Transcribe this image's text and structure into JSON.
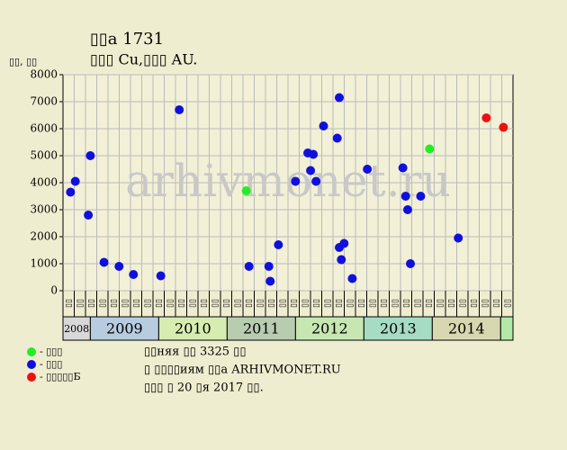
{
  "chart_data": {
    "type": "scatter",
    "title": "▯▯а 1731",
    "subtitle": "▯▯▯ Cu,▯▯▯ AU.",
    "y_label": "▯▯, ▯▯",
    "watermark": "arhivmonet.ru",
    "xlim": [
      2008.6,
      2015.18
    ],
    "ylim": [
      0,
      8000
    ],
    "yticks": [
      0,
      1000,
      2000,
      3000,
      4000,
      5000,
      6000,
      7000,
      8000
    ],
    "grid": true,
    "columns": [
      "▯▯",
      "▯▯",
      "▯▯",
      "▯▯",
      "▯▯",
      "▯▯",
      "▯▯",
      "▯▯",
      "▯▯",
      "▯▯",
      "▯▯",
      "▯▯",
      "▯▯",
      "▯▯",
      "▯▯",
      "▯▯",
      "▯▯",
      "▯▯",
      "▯▯",
      "▯▯",
      "▯▯",
      "▯▯",
      "▯▯",
      "▯▯",
      "▯▯",
      "▯▯",
      "▯▯",
      "▯▯",
      "▯▯",
      "▯▯",
      "▯▯",
      "▯▯",
      "▯▯",
      "▯▯",
      "▯▯",
      "▯▯",
      "▯▯",
      "▯▯",
      "▯▯",
      "▯▯"
    ],
    "years": [
      {
        "label": "2008",
        "start": 2008.6,
        "end": 2009,
        "color": "#d8d8d8"
      },
      {
        "label": "2009",
        "start": 2009,
        "end": 2010,
        "color": "#b8cce0"
      },
      {
        "label": "2010",
        "start": 2010,
        "end": 2011,
        "color": "#d6ecb0"
      },
      {
        "label": "2011",
        "start": 2011,
        "end": 2012,
        "color": "#b8ccb0"
      },
      {
        "label": "2012",
        "start": 2012,
        "end": 2013,
        "color": "#c6e6b2"
      },
      {
        "label": "2013",
        "start": 2013,
        "end": 2014,
        "color": "#a6dcc4"
      },
      {
        "label": "2014",
        "start": 2014,
        "end": 2015,
        "color": "#d8d8b0"
      },
      {
        "start": 2015,
        "end": 2015.18,
        "color": "#b4e8a8"
      }
    ],
    "series": [
      {
        "name": "- ▯▯▯",
        "color": "#22ee22",
        "x": [
          2011.28,
          2013.96
        ],
        "values": [
          3700,
          5250
        ]
      },
      {
        "name": "- ▯▯▯",
        "color": "#1010dd",
        "x": [
          2008.71,
          2008.78,
          2008.97,
          2009.0,
          2009.2,
          2009.42,
          2009.63,
          2010.03,
          2010.3,
          2011.32,
          2011.61,
          2011.63,
          2011.75,
          2012.0,
          2012.18,
          2012.22,
          2012.26,
          2012.3,
          2012.41,
          2012.61,
          2012.64,
          2012.64,
          2012.71,
          2012.67,
          2012.83,
          2013.05,
          2013.57,
          2013.61,
          2013.64,
          2013.68,
          2013.83,
          2014.38
        ],
        "values": [
          3650,
          4050,
          2800,
          5000,
          1050,
          900,
          600,
          550,
          6700,
          900,
          900,
          350,
          1700,
          4050,
          5100,
          4450,
          5050,
          4050,
          6100,
          5650,
          7150,
          1600,
          1750,
          1150,
          450,
          4500,
          4550,
          3500,
          3000,
          1000,
          3500,
          1950
        ]
      },
      {
        "name": "- ▯▯▯▯▯Б",
        "color": "#ee1111",
        "x": [
          2014.79,
          2015.04
        ],
        "values": [
          6400,
          6050
        ]
      }
    ],
    "notes": [
      "▯▯няя ▯▯ 3325 ▯▯",
      "▯ ▯▯▯▯иям ▯▯а ARHIVMONET.RU",
      "▯▯▯ ▯ 20 ▯я 2017 ▯▯."
    ]
  }
}
